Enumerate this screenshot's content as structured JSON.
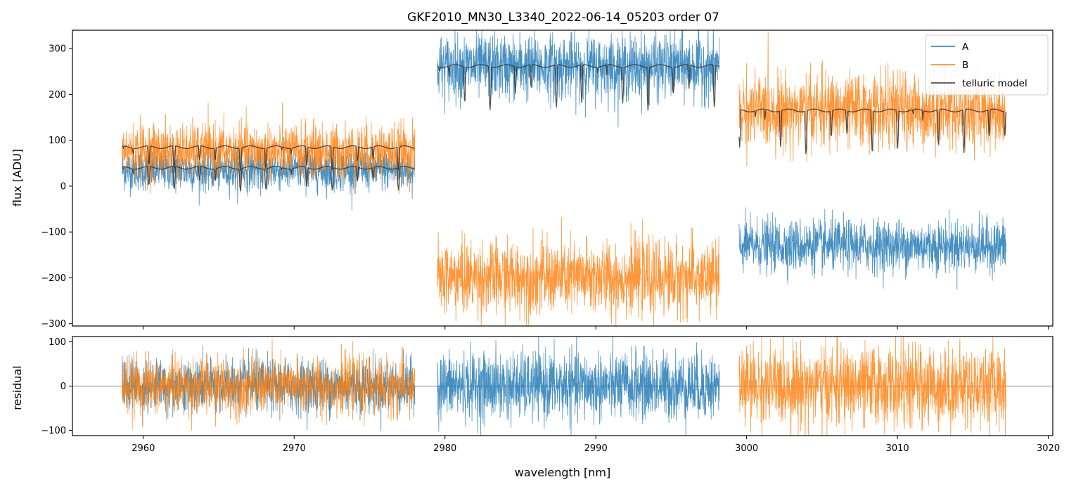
{
  "chart_data": [
    {
      "panel": "top",
      "type": "line",
      "title": "GKF2010_MN30_L3340_2022-06-14_05203  order 07",
      "xlabel": "",
      "ylabel": "flux [ADU]",
      "xlim": [
        2955.3,
        3020.3
      ],
      "ylim": [
        -305,
        340
      ],
      "xticks": [
        2960,
        2970,
        2980,
        2990,
        3000,
        3010,
        3020
      ],
      "yticks": [
        300,
        200,
        100,
        0,
        -100,
        -200,
        -300
      ],
      "ytick_labels": [
        "300",
        "200",
        "100",
        "0",
        "−100",
        "−200",
        "−300"
      ],
      "legend": {
        "position": "top-right",
        "entries": [
          {
            "label": "A",
            "color": "#1f77b4"
          },
          {
            "label": "B",
            "color": "#ff7f0e"
          },
          {
            "label": "telluric model",
            "color": "#333333"
          }
        ]
      },
      "series": [
        {
          "name": "A",
          "color": "#1f77b4",
          "segments": [
            {
              "x_range": [
                2958.6,
                2978.0
              ],
              "level": 35,
              "noise_sd": 22
            },
            {
              "x_range": [
                2979.5,
                2998.2
              ],
              "level": 260,
              "noise_sd": 35
            },
            {
              "x_range": [
                2999.5,
                3017.2
              ],
              "level": -130,
              "noise_sd": 28
            }
          ]
        },
        {
          "name": "B",
          "color": "#ff7f0e",
          "segments": [
            {
              "x_range": [
                2958.6,
                2978.0
              ],
              "level": 75,
              "noise_sd": 30
            },
            {
              "x_range": [
                2979.5,
                2998.2
              ],
              "level": -200,
              "noise_sd": 40
            },
            {
              "x_range": [
                2999.5,
                3017.2
              ],
              "level": 165,
              "noise_sd": 40
            }
          ]
        },
        {
          "name": "telluric model",
          "color": "#333333",
          "segments": [
            {
              "x_range": [
                2958.6,
                2978.0
              ],
              "level": 40
            },
            {
              "x_range": [
                2958.6,
                2978.0
              ],
              "level": 85
            },
            {
              "x_range": [
                2979.5,
                2998.2
              ],
              "level": 262
            },
            {
              "x_range": [
                2999.5,
                3017.2
              ],
              "level": 165
            }
          ]
        }
      ]
    },
    {
      "panel": "bottom",
      "type": "line",
      "title": "",
      "xlabel": "wavelength [nm]",
      "ylabel": "residual",
      "xlim": [
        2955.3,
        3020.3
      ],
      "ylim": [
        -112,
        112
      ],
      "xticks": [
        2960,
        2970,
        2980,
        2990,
        3000,
        3010,
        3020
      ],
      "xtick_labels": [
        "2960",
        "2970",
        "2980",
        "2990",
        "3000",
        "3010",
        "3020"
      ],
      "yticks": [
        100,
        0,
        -100
      ],
      "ytick_labels": [
        "100",
        "0",
        "−100"
      ],
      "reference_line": 0,
      "series": [
        {
          "name": "A",
          "color": "#1f77b4",
          "segments": [
            {
              "x_range": [
                2958.6,
                2978.0
              ],
              "level": 0,
              "noise_sd": 30
            },
            {
              "x_range": [
                2979.5,
                2998.2
              ],
              "level": 0,
              "noise_sd": 38
            }
          ]
        },
        {
          "name": "B",
          "color": "#ff7f0e",
          "segments": [
            {
              "x_range": [
                2958.6,
                2978.0
              ],
              "level": 0,
              "noise_sd": 32
            },
            {
              "x_range": [
                2999.5,
                3017.2
              ],
              "level": 0,
              "noise_sd": 45
            }
          ]
        }
      ]
    }
  ]
}
